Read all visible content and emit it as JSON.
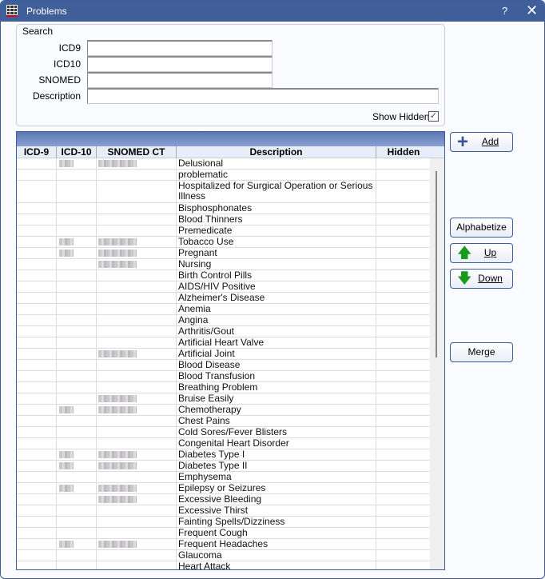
{
  "window": {
    "title": "Problems",
    "help": "?",
    "close": "✕"
  },
  "search": {
    "legend": "Search",
    "icd9_label": "ICD9",
    "icd10_label": "ICD10",
    "snomed_label": "SNOMED",
    "description_label": "Description",
    "icd9_value": "",
    "icd10_value": "",
    "snomed_value": "",
    "description_value": "",
    "show_hidden_label": "Show Hidden",
    "show_hidden_checked": true
  },
  "grid": {
    "columns": [
      "ICD-9",
      "ICD-10",
      "SNOMED CT",
      "Description",
      "Hidden"
    ],
    "rows": [
      {
        "desc": "Delusional",
        "icd10": true,
        "snomed": true
      },
      {
        "desc": "problematic"
      },
      {
        "desc": "Hospitalized for Surgical Operation or Serious Illness",
        "two": true
      },
      {
        "desc": "Bisphosphonates"
      },
      {
        "desc": "Blood Thinners"
      },
      {
        "desc": "Premedicate"
      },
      {
        "desc": "Tobacco Use",
        "icd10": true,
        "snomed": true
      },
      {
        "desc": "Pregnant",
        "icd10": true,
        "snomed": true
      },
      {
        "desc": "Nursing",
        "snomed": true
      },
      {
        "desc": "Birth Control Pills"
      },
      {
        "desc": "AIDS/HIV Positive"
      },
      {
        "desc": "Alzheimer's Disease"
      },
      {
        "desc": "Anemia"
      },
      {
        "desc": "Angina"
      },
      {
        "desc": "Arthritis/Gout"
      },
      {
        "desc": "Artificial Heart Valve"
      },
      {
        "desc": "Artificial Joint",
        "snomed": true
      },
      {
        "desc": "Blood Disease"
      },
      {
        "desc": "Blood Transfusion"
      },
      {
        "desc": "Breathing Problem"
      },
      {
        "desc": "Bruise Easily",
        "snomed": true
      },
      {
        "desc": "Chemotherapy",
        "icd10": true,
        "snomed": true
      },
      {
        "desc": "Chest Pains"
      },
      {
        "desc": "Cold Sores/Fever Blisters"
      },
      {
        "desc": "Congenital Heart Disorder"
      },
      {
        "desc": "Diabetes Type I",
        "icd10": true,
        "snomed": true
      },
      {
        "desc": "Diabetes Type II",
        "icd10": true,
        "snomed": true
      },
      {
        "desc": "Emphysema"
      },
      {
        "desc": "Epilepsy or Seizures",
        "icd10": true,
        "snomed": true
      },
      {
        "desc": "Excessive Bleeding",
        "snomed": true
      },
      {
        "desc": "Excessive Thirst"
      },
      {
        "desc": "Fainting Spells/Dizziness"
      },
      {
        "desc": "Frequent Cough"
      },
      {
        "desc": "Frequent Headaches",
        "icd10": true,
        "snomed": true
      },
      {
        "desc": "Glaucoma"
      },
      {
        "desc": "Heart Attack"
      }
    ]
  },
  "buttons": {
    "add": "Add",
    "alphabetize": "Alphabetize",
    "up": "Up",
    "down": "Down",
    "merge": "Merge"
  },
  "colors": {
    "title_bar": "#405e9a",
    "arrow_green": "#1a9a1a",
    "plus_blue": "#3b4f9a"
  }
}
